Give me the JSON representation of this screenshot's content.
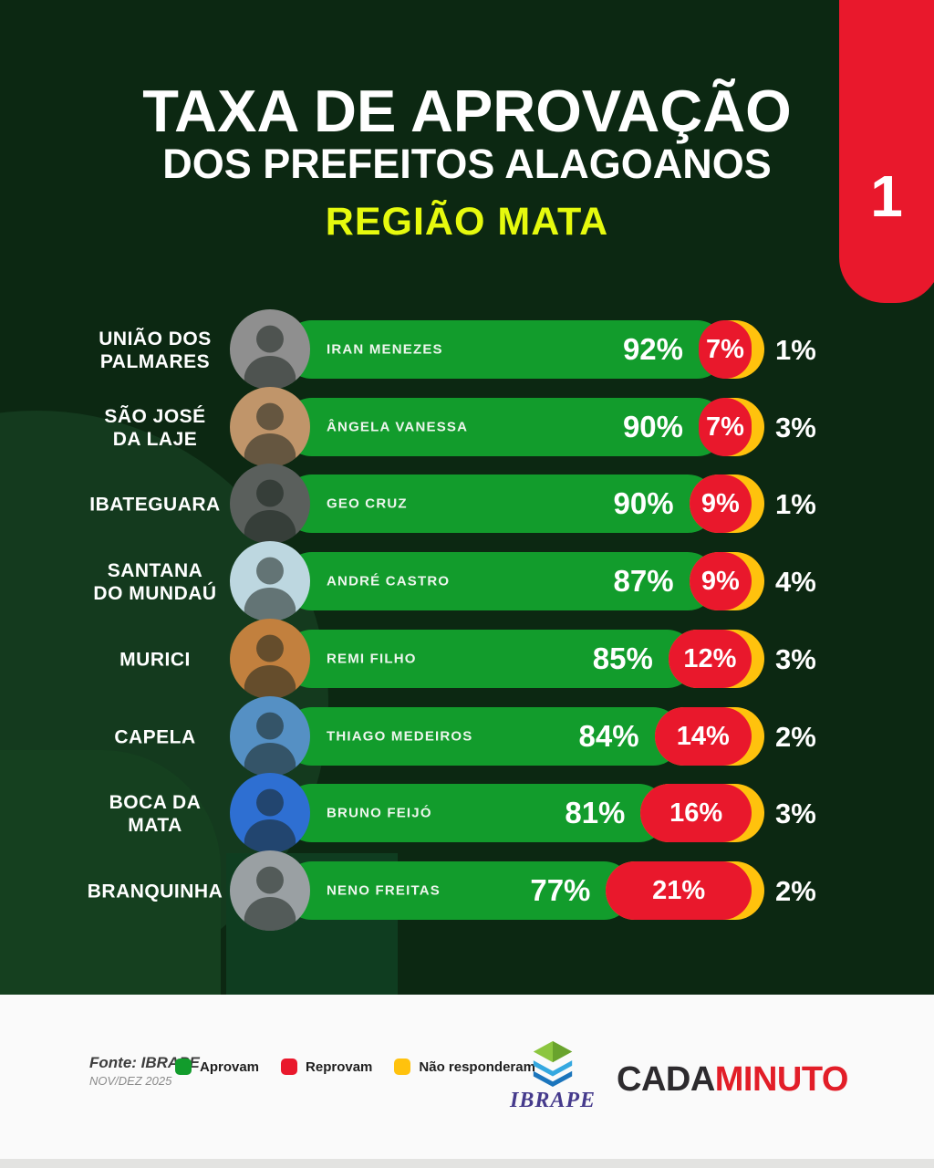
{
  "header": {
    "title_line1": "TAXA DE APROVAÇÃO",
    "title_line2": "DOS PREFEITOS ALAGOANOS",
    "subtitle": "REGIÃO MATA",
    "page_number": "1"
  },
  "rows": [
    {
      "city": "UNIÃO DOS\nPALMARES",
      "mayor": "IRAN MENEZES",
      "aprovam": 92,
      "reprovam": 7,
      "nao_responderam": 1,
      "photo_bg": "#8f8f8f"
    },
    {
      "city": "SÃO JOSÉ\nDA LAJE",
      "mayor": "ÂNGELA VANESSA",
      "aprovam": 90,
      "reprovam": 7,
      "nao_responderam": 3,
      "photo_bg": "#c0956a"
    },
    {
      "city": "IBATEGUARA",
      "mayor": "GEO CRUZ",
      "aprovam": 90,
      "reprovam": 9,
      "nao_responderam": 1,
      "photo_bg": "#5a5f5c"
    },
    {
      "city": "SANTANA\nDO MUNDAÚ",
      "mayor": "ANDRÉ CASTRO",
      "aprovam": 87,
      "reprovam": 9,
      "nao_responderam": 4,
      "photo_bg": "#bdd7e0"
    },
    {
      "city": "MURICI",
      "mayor": "REMI FILHO",
      "aprovam": 85,
      "reprovam": 12,
      "nao_responderam": 3,
      "photo_bg": "#c2803e"
    },
    {
      "city": "CAPELA",
      "mayor": "THIAGO MEDEIROS",
      "aprovam": 84,
      "reprovam": 14,
      "nao_responderam": 2,
      "photo_bg": "#5590c4"
    },
    {
      "city": "BOCA DA\nMATA",
      "mayor": "BRUNO FEIJÓ",
      "aprovam": 81,
      "reprovam": 16,
      "nao_responderam": 3,
      "photo_bg": "#2e6fd2"
    },
    {
      "city": "BRANQUINHA",
      "mayor": "NENO FREITAS",
      "aprovam": 77,
      "reprovam": 21,
      "nao_responderam": 2,
      "photo_bg": "#9aa0a3"
    }
  ],
  "chart_data": {
    "type": "bar",
    "orientation": "horizontal",
    "title": "TAXA DE APROVAÇÃO DOS PREFEITOS ALAGOANOS",
    "subtitle": "REGIÃO MATA",
    "page": 1,
    "source": "IBRAPE",
    "period": "NOV/DEZ 2025",
    "value_format": "percent",
    "xlim": [
      0,
      100
    ],
    "legend_position": "bottom",
    "categories": [
      "UNIÃO DOS PALMARES",
      "SÃO JOSÉ DA LAJE",
      "IBATEGUARA",
      "SANTANA DO MUNDAÚ",
      "MURICI",
      "CAPELA",
      "BOCA DA MATA",
      "BRANQUINHA"
    ],
    "mayors": [
      "IRAN MENEZES",
      "ÂNGELA VANESSA",
      "GEO CRUZ",
      "ANDRÉ CASTRO",
      "REMI FILHO",
      "THIAGO MEDEIROS",
      "BRUNO FEIJÓ",
      "NENO FREITAS"
    ],
    "series": [
      {
        "name": "Aprovam",
        "color": "#129c2c",
        "values": [
          92,
          90,
          90,
          87,
          85,
          84,
          81,
          77
        ]
      },
      {
        "name": "Reprovam",
        "color": "#e9182c",
        "values": [
          7,
          7,
          9,
          9,
          12,
          14,
          16,
          21
        ]
      },
      {
        "name": "Não responderam",
        "color": "#ffc20d",
        "values": [
          1,
          3,
          1,
          4,
          3,
          2,
          3,
          2
        ]
      }
    ]
  },
  "footer": {
    "source_label": "Fonte: IBRAPE",
    "source_period": "NOV/DEZ 2025",
    "legend_items": [
      {
        "label": "Aprovam"
      },
      {
        "label": "Reprovam"
      },
      {
        "label": "Não responderam"
      }
    ],
    "ibrape_logo_text": "IBRAPE",
    "brand_cada": "CADA",
    "brand_minuto": "MINUTO"
  },
  "colors": {
    "bg": "#0c2812",
    "decor1": "#143a1e",
    "decor2": "#15401f",
    "decor3": "#0f3d20",
    "aprovam": "#129c2c",
    "reprovam": "#e9182c",
    "nao": "#ffc20d",
    "subtitle": "#e6fa0e",
    "footer": "#fafafa"
  }
}
